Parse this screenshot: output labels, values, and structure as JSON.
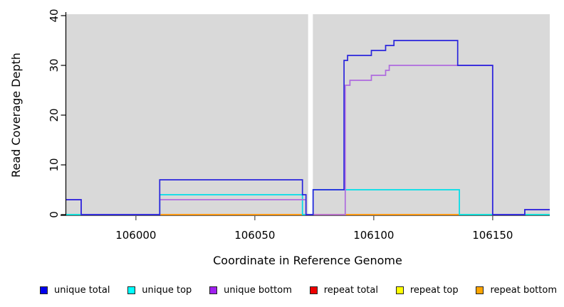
{
  "chart_data": {
    "type": "line",
    "style": "step",
    "title": "",
    "xlabel": "Coordinate in Reference Genome",
    "ylabel": "Read Coverage Depth",
    "xlim": [
      105970.7,
      106174
    ],
    "ylim": [
      0,
      40
    ],
    "xticks": [
      106000,
      106050,
      106100,
      106150
    ],
    "yticks": [
      0,
      10,
      20,
      30,
      40
    ],
    "grid": false,
    "plot_background": "#D9D9D9",
    "gap_band": {
      "x0": 106072.4,
      "x1": 106074.4,
      "color": "#FFFFFF"
    },
    "legend_position": "bottom",
    "series": [
      {
        "name": "unique total",
        "color": "#2A25DC",
        "legend_color": "#0000EE",
        "points": [
          [
            105970.7,
            3
          ],
          [
            105977,
            0
          ],
          [
            106010,
            7
          ],
          [
            106070,
            4
          ],
          [
            106071.5,
            0
          ],
          [
            106074.5,
            5
          ],
          [
            106087.5,
            31
          ],
          [
            106089,
            32
          ],
          [
            106099,
            33
          ],
          [
            106105,
            34
          ],
          [
            106108.5,
            35
          ],
          [
            106135.3,
            30
          ],
          [
            106150,
            0
          ],
          [
            106163.5,
            1
          ],
          [
            106174,
            1
          ]
        ]
      },
      {
        "name": "unique top",
        "color": "#00DEE8",
        "legend_color": "#00FFFF",
        "points": [
          [
            105970.7,
            0
          ],
          [
            106010,
            4
          ],
          [
            106070,
            0
          ],
          [
            106074.5,
            5
          ],
          [
            106136,
            0
          ],
          [
            106174,
            0
          ]
        ]
      },
      {
        "name": "unique bottom",
        "color": "#AE6BDE",
        "legend_color": "#A020F0",
        "points": [
          [
            105970.7,
            3
          ],
          [
            105977,
            0
          ],
          [
            106010,
            3
          ],
          [
            106071.5,
            0
          ],
          [
            106088,
            26
          ],
          [
            106090,
            27
          ],
          [
            106099,
            28
          ],
          [
            106105,
            29
          ],
          [
            106106.5,
            30
          ],
          [
            106150,
            0
          ],
          [
            106163.5,
            1
          ],
          [
            106174,
            1
          ]
        ]
      },
      {
        "name": "repeat total",
        "color": "#DC2A2A",
        "legend_color": "#EE0000",
        "points": [
          [
            105970.7,
            0
          ],
          [
            106174,
            0
          ]
        ]
      },
      {
        "name": "repeat top",
        "color": "#E8E82A",
        "legend_color": "#FFFF00",
        "points": [
          [
            105970.7,
            0
          ],
          [
            106174,
            0
          ]
        ]
      },
      {
        "name": "repeat bottom",
        "color": "#FF9514",
        "legend_color": "#FFA500",
        "points": [
          [
            106010,
            0
          ],
          [
            106136,
            0
          ]
        ]
      }
    ],
    "overlap_artifact_color": "#7CE07C"
  }
}
